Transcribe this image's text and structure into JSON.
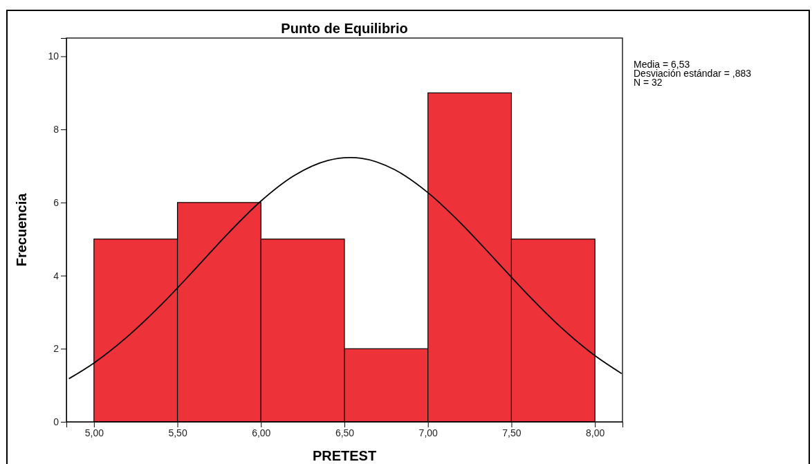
{
  "chart_data": {
    "type": "histogram",
    "title": "Punto de Equilibrio",
    "xlabel": "PRETEST",
    "ylabel": "Frecuencia",
    "bins": [
      5.0,
      5.5,
      6.0,
      6.5,
      7.0,
      7.5,
      8.0
    ],
    "series": [
      {
        "color": "#ee3239",
        "values": [
          5,
          6,
          5,
          2,
          9,
          5
        ]
      },
      {
        "type": "line",
        "color": "#000000",
        "x": [
          4.85,
          5.0,
          5.2,
          5.4,
          5.6,
          5.8,
          6.0,
          6.2,
          6.4,
          6.53,
          6.6,
          6.8,
          7.0,
          7.2,
          7.4,
          7.6,
          7.8,
          8.0,
          8.16
        ],
        "values": [
          1.18,
          1.61,
          2.33,
          3.19,
          4.15,
          5.14,
          6.04,
          6.74,
          7.15,
          7.23,
          7.21,
          6.9,
          6.27,
          5.42,
          4.45,
          3.47,
          2.57,
          1.81,
          1.32
        ]
      }
    ],
    "xlim": [
      4.835,
      8.165
    ],
    "ylim": [
      0,
      10.5
    ],
    "xticks": [
      {
        "value": 5,
        "label": "5,00"
      },
      {
        "value": 5.5,
        "label": "5,50"
      },
      {
        "value": 6,
        "label": "6,00"
      },
      {
        "value": 6.5,
        "label": "6,50"
      },
      {
        "value": 7,
        "label": "7,00"
      },
      {
        "value": 7.5,
        "label": "7,50"
      },
      {
        "value": 8,
        "label": "8,00"
      }
    ],
    "yticks": [
      0,
      2,
      4,
      6,
      8,
      10
    ],
    "grid": false,
    "marker": "none",
    "line_style": "solid",
    "annotations": [
      "Media = 6,53",
      "Desviación estándar = ,883",
      "N = 32"
    ]
  }
}
